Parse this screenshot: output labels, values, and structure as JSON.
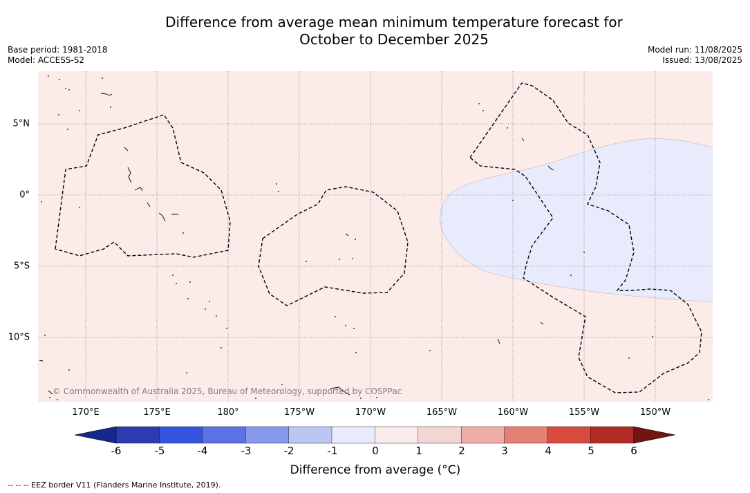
{
  "title_line1": "Difference from average mean minimum temperature forecast for",
  "title_line2": "October to December 2025",
  "base_period": "Base period: 1981-2018",
  "model": "Model: ACCESS-S2",
  "model_run": "Model run: 11/08/2025",
  "issued": "Issued: 13/08/2025",
  "longitude_labels": [
    "170°E",
    "175°E",
    "180°",
    "175°W",
    "170°W",
    "165°W",
    "160°W",
    "155°W",
    "150°W"
  ],
  "latitude_labels": [
    "5°N",
    "0°",
    "5°S",
    "10°S"
  ],
  "colorbar": {
    "label": "Difference from average (°C)",
    "ticks": [
      "-6",
      "-5",
      "-4",
      "-3",
      "-2",
      "-1",
      "0",
      "1",
      "2",
      "3",
      "4",
      "5",
      "6"
    ],
    "colors": [
      "#17288a",
      "#2b3cb0",
      "#3454e0",
      "#5a72e6",
      "#8699ec",
      "#bcc6f2",
      "#e8ebfb",
      "#fbecec",
      "#f0d6d4",
      "#eeaca6",
      "#e67f76",
      "#d84a3e",
      "#b12c25",
      "#701513"
    ]
  },
  "map": {
    "background_color": "#fbebe9",
    "negative_region_color": "#e8ebfb"
  },
  "copyright": "© Commonwealth of Australia 2025, Bureau of Meteorology, supported by COSPPac",
  "legend_note": "-- -- -- EEZ border V11 (Flanders Marine Institute, 2019)."
}
